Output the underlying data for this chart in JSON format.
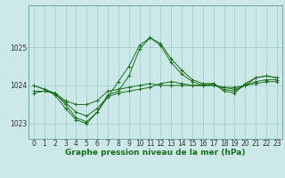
{
  "bg_color": "#cce8e8",
  "grid_color": "#99cccc",
  "line_color": "#1a6e1a",
  "title": "Graphe pression niveau de la mer (hPa)",
  "ylabel_ticks": [
    1023,
    1024,
    1025
  ],
  "xlim_min": -0.5,
  "xlim_max": 23.5,
  "ylim_min": 1022.6,
  "ylim_max": 1026.1,
  "series": [
    [
      1024.0,
      1023.9,
      1023.8,
      1023.5,
      1023.15,
      1023.05,
      1023.3,
      1023.75,
      1023.85,
      1024.25,
      1024.95,
      1025.25,
      1025.1,
      1024.7,
      1024.4,
      1024.15,
      1024.05,
      1024.05,
      1023.85,
      1023.8,
      1024.05,
      1024.2,
      1024.25,
      1024.2
    ],
    [
      1023.8,
      1023.85,
      1023.8,
      1023.6,
      1023.5,
      1023.5,
      1023.6,
      1023.85,
      1023.9,
      1023.95,
      1024.0,
      1024.05,
      1024.0,
      1024.0,
      1024.0,
      1024.0,
      1024.0,
      1024.0,
      1023.95,
      1023.95,
      1024.0,
      1024.05,
      1024.1,
      1024.1
    ],
    [
      1023.85,
      1023.85,
      1023.8,
      1023.55,
      1023.3,
      1023.2,
      1023.4,
      1023.7,
      1023.8,
      1023.85,
      1023.9,
      1023.95,
      1024.05,
      1024.1,
      1024.05,
      1024.0,
      1024.0,
      1024.0,
      1023.95,
      1023.9,
      1024.0,
      1024.1,
      1024.15,
      1024.15
    ],
    [
      1024.0,
      1023.9,
      1023.75,
      1023.4,
      1023.1,
      1023.0,
      1023.3,
      1023.7,
      1024.1,
      1024.5,
      1025.05,
      1025.25,
      1025.05,
      1024.6,
      1024.3,
      1024.1,
      1024.0,
      1024.05,
      1023.9,
      1023.85,
      1024.0,
      1024.2,
      1024.25,
      1024.2
    ]
  ],
  "tick_fontsize": 5.5,
  "label_fontsize": 6.5
}
